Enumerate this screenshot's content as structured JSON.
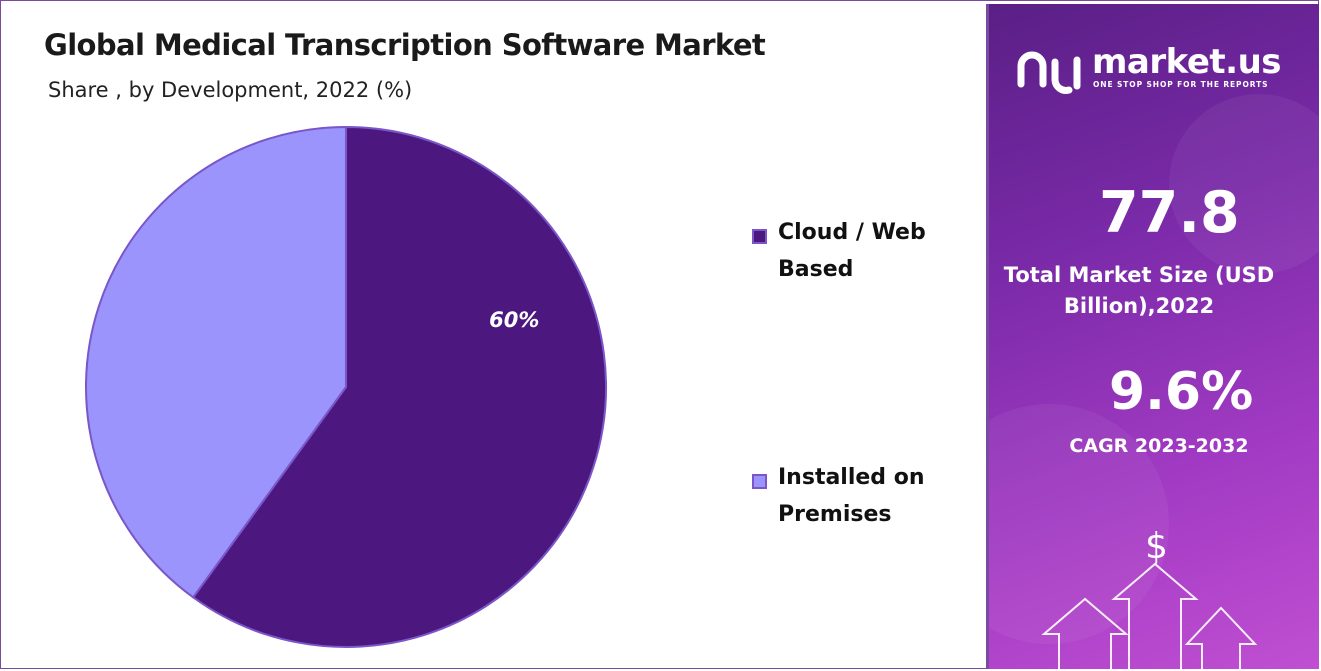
{
  "chart_data": {
    "type": "pie",
    "title": "Global Medical Transcription Software Market",
    "subtitle": "Share , by Development, 2022 (%)",
    "categories": [
      "Cloud / Web Based",
      "Installed on Premises"
    ],
    "values": [
      60,
      40
    ],
    "data_labels": [
      "60%",
      ""
    ],
    "colors": [
      "#4c1880",
      "#9a94fc"
    ],
    "legend_position": "right"
  },
  "legend": {
    "items": [
      {
        "label": "Cloud / Web Based",
        "color": "#4c1880"
      },
      {
        "label": "Installed on Premises",
        "color": "#9a94fc"
      }
    ]
  },
  "side_panel": {
    "brand_name": "market.us",
    "brand_tagline": "ONE STOP SHOP FOR THE REPORTS",
    "market_size_value": "77.8",
    "market_size_label": "Total Market Size (USD Billion),2022",
    "cagr_value": "9.6%",
    "cagr_label": "CAGR 2023-2032",
    "dollar_symbol": "$"
  }
}
